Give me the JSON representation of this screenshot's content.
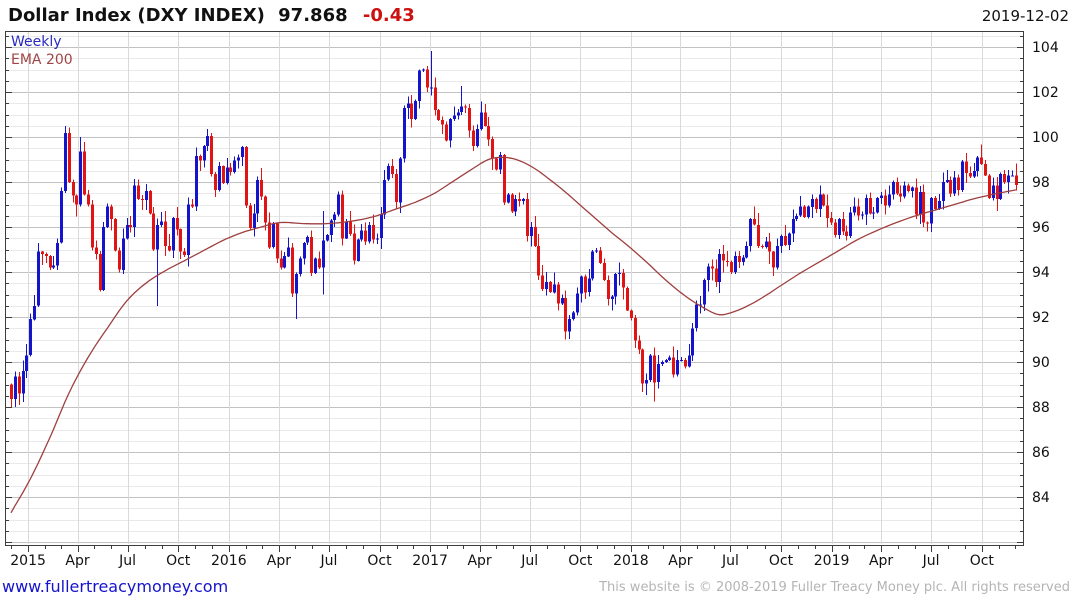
{
  "header": {
    "title": "Dollar Index (DXY INDEX)",
    "price": "97.868",
    "change": "-0.43",
    "date": "2019-12-02"
  },
  "legend": {
    "series": "Weekly",
    "overlay": "EMA 200"
  },
  "footer": {
    "site": "www.fullertreacymoney.com",
    "copyright": "This website is © 2008-2019 Fuller Treacy Money plc. All rights reserved"
  },
  "colors": {
    "up": "#1414cc",
    "down": "#e01414",
    "ema": "#9e3f3f",
    "legend_series": "#2a2ac0",
    "legend_ema": "#a04545",
    "title_text": "#111111",
    "change_red": "#cc1111",
    "axis_text": "#111111",
    "border": "#3d3d3d",
    "grid_major": "#c2c2c2",
    "grid_minor": "#e9e9e9",
    "grid_vertical": "#d9d9d9",
    "link_blue": "#1414cc",
    "copy_gray": "#b4b4b4"
  },
  "chart_data": {
    "type": "candlestick",
    "period": "weekly",
    "title": "Dollar Index (DXY INDEX)",
    "start_week": "2014-12-01",
    "end_week": "2019-12-02",
    "grid": true,
    "legend_position": "top-left-inside",
    "y_axis": {
      "side": "right",
      "min": 81.8,
      "max": 104.6,
      "major_step": 2,
      "minor_step": 0.5,
      "label_ticks": [
        84,
        86,
        88,
        90,
        92,
        94,
        96,
        98,
        100,
        102,
        104
      ]
    },
    "x_ticks": [
      {
        "label": "2015",
        "month": 1
      },
      {
        "label": "Apr",
        "month": 4
      },
      {
        "label": "Jul",
        "month": 7
      },
      {
        "label": "Oct",
        "month": 10
      },
      {
        "label": "2016",
        "month": 13
      },
      {
        "label": "Apr",
        "month": 16
      },
      {
        "label": "Jul",
        "month": 19
      },
      {
        "label": "Oct",
        "month": 22
      },
      {
        "label": "2017",
        "month": 25
      },
      {
        "label": "Apr",
        "month": 28
      },
      {
        "label": "Jul",
        "month": 31
      },
      {
        "label": "Oct",
        "month": 34
      },
      {
        "label": "2018",
        "month": 37
      },
      {
        "label": "Apr",
        "month": 40
      },
      {
        "label": "Jul",
        "month": 43
      },
      {
        "label": "Oct",
        "month": 46
      },
      {
        "label": "2019",
        "month": 49
      },
      {
        "label": "Apr",
        "month": 52
      },
      {
        "label": "Jul",
        "month": 55
      },
      {
        "label": "Oct",
        "month": 58
      }
    ],
    "first_open": 89.0,
    "weekly_closes": [
      88.35,
      89.35,
      88.6,
      89.6,
      90.3,
      91.9,
      92.5,
      94.9,
      94.8,
      94.7,
      94.2,
      94.3,
      95.3,
      97.6,
      100.18,
      98.0,
      97.4,
      97.0,
      99.35,
      97.45,
      97.0,
      95.1,
      94.8,
      93.2,
      96.0,
      96.9,
      96.35,
      94.95,
      94.1,
      95.5,
      96.1,
      96.0,
      97.85,
      97.25,
      97.2,
      97.6,
      96.6,
      95.0,
      96.1,
      96.25,
      95.15,
      94.95,
      96.4,
      95.9,
      94.9,
      94.75,
      97.0,
      96.9,
      99.15,
      98.95,
      99.6,
      100.05,
      98.35,
      97.65,
      98.7,
      97.95,
      98.65,
      98.45,
      98.95,
      99.1,
      99.55,
      96.95,
      95.95,
      96.6,
      98.1,
      97.35,
      96.2,
      95.1,
      96.15,
      94.6,
      94.2,
      94.7,
      95.1,
      93.05,
      93.9,
      94.6,
      95.3,
      95.55,
      93.95,
      94.6,
      94.2,
      95.4,
      95.65,
      96.3,
      96.55,
      97.45,
      95.5,
      96.25,
      95.7,
      94.5,
      95.45,
      95.85,
      95.35,
      96.1,
      95.45,
      95.5,
      96.55,
      98.1,
      98.7,
      98.35,
      97.1,
      99.05,
      101.3,
      101.5,
      100.8,
      101.6,
      102.95,
      103.0,
      102.2,
      102.2,
      101.2,
      100.75,
      100.55,
      99.85,
      100.8,
      100.95,
      101.1,
      101.35,
      101.3,
      100.3,
      99.6,
      100.35,
      101.1,
      100.5,
      99.9,
      99.05,
      98.55,
      99.2,
      97.1,
      97.45,
      96.7,
      97.25,
      97.15,
      97.25,
      95.6,
      96.0,
      95.15,
      93.85,
      93.25,
      93.55,
      93.1,
      93.45,
      92.6,
      92.85,
      91.35,
      91.9,
      92.2,
      93.05,
      93.8,
      93.1,
      93.7,
      94.9,
      94.95,
      94.4,
      93.65,
      92.8,
      92.9,
      93.9,
      93.95,
      93.3,
      92.3,
      91.95,
      90.95,
      90.55,
      89.05,
      89.2,
      90.3,
      89.1,
      89.9,
      90.0,
      90.1,
      90.2,
      89.45,
      90.1,
      90.1,
      89.8,
      90.3,
      91.5,
      92.55,
      92.55,
      93.65,
      94.25,
      94.15,
      93.55,
      94.8,
      94.5,
      94.45,
      94.0,
      94.7,
      94.45,
      94.65,
      95.15,
      96.35,
      96.1,
      95.15,
      95.1,
      95.35,
      94.9,
      94.2,
      95.15,
      95.6,
      95.2,
      95.7,
      96.35,
      96.5,
      96.9,
      96.45,
      96.9,
      97.25,
      96.8,
      97.45,
      96.95,
      96.4,
      96.2,
      95.65,
      96.35,
      95.8,
      95.6,
      96.65,
      96.9,
      96.5,
      96.55,
      97.3,
      96.6,
      96.65,
      97.3,
      97.4,
      96.95,
      97.45,
      98.0,
      97.5,
      97.35,
      97.85,
      97.6,
      97.75,
      96.55,
      97.55,
      96.2,
      96.15,
      97.3,
      96.8,
      97.15,
      98.0,
      98.1,
      97.5,
      98.2,
      97.65,
      98.9,
      98.4,
      98.25,
      98.5,
      99.1,
      98.8,
      98.3,
      97.3,
      97.85,
      97.25,
      98.35,
      98.0,
      98.3,
      98.3,
      97.868
    ],
    "wick_overrides": {
      "14": {
        "high": 100.5
      },
      "18": {
        "high": 100.0
      },
      "38": {
        "low": 92.5
      },
      "51": {
        "high": 100.35
      },
      "74": {
        "low": 91.9
      },
      "81": {
        "high": 96.7,
        "low": 93.0
      },
      "109": {
        "high": 103.82
      },
      "117": {
        "high": 102.26
      },
      "144": {
        "low": 91.01
      },
      "167": {
        "low": 88.25
      },
      "193": {
        "high": 96.9
      },
      "252": {
        "high": 99.67
      }
    },
    "ema200_anchors": [
      [
        0,
        83.3
      ],
      [
        5,
        84.8
      ],
      [
        10,
        86.6
      ],
      [
        15,
        88.6
      ],
      [
        20,
        90.2
      ],
      [
        25,
        91.5
      ],
      [
        30,
        92.7
      ],
      [
        35,
        93.5
      ],
      [
        40,
        94.05
      ],
      [
        45,
        94.5
      ],
      [
        50,
        94.95
      ],
      [
        55,
        95.4
      ],
      [
        60,
        95.75
      ],
      [
        65,
        96.0
      ],
      [
        70,
        96.2
      ],
      [
        76,
        96.15
      ],
      [
        82,
        96.15
      ],
      [
        88,
        96.25
      ],
      [
        94,
        96.45
      ],
      [
        100,
        96.8
      ],
      [
        105,
        97.1
      ],
      [
        110,
        97.5
      ],
      [
        115,
        98.05
      ],
      [
        120,
        98.6
      ],
      [
        124,
        99.0
      ],
      [
        128,
        99.1
      ],
      [
        132,
        98.95
      ],
      [
        136,
        98.6
      ],
      [
        140,
        98.1
      ],
      [
        144,
        97.55
      ],
      [
        148,
        96.95
      ],
      [
        152,
        96.35
      ],
      [
        156,
        95.75
      ],
      [
        160,
        95.2
      ],
      [
        165,
        94.45
      ],
      [
        170,
        93.65
      ],
      [
        175,
        92.95
      ],
      [
        180,
        92.4
      ],
      [
        184,
        92.1
      ],
      [
        188,
        92.25
      ],
      [
        192,
        92.55
      ],
      [
        196,
        92.95
      ],
      [
        200,
        93.4
      ],
      [
        205,
        93.95
      ],
      [
        210,
        94.45
      ],
      [
        215,
        94.95
      ],
      [
        220,
        95.45
      ],
      [
        225,
        95.85
      ],
      [
        230,
        96.2
      ],
      [
        235,
        96.5
      ],
      [
        240,
        96.75
      ],
      [
        245,
        97.0
      ],
      [
        250,
        97.25
      ],
      [
        255,
        97.45
      ],
      [
        261,
        97.65
      ]
    ]
  }
}
